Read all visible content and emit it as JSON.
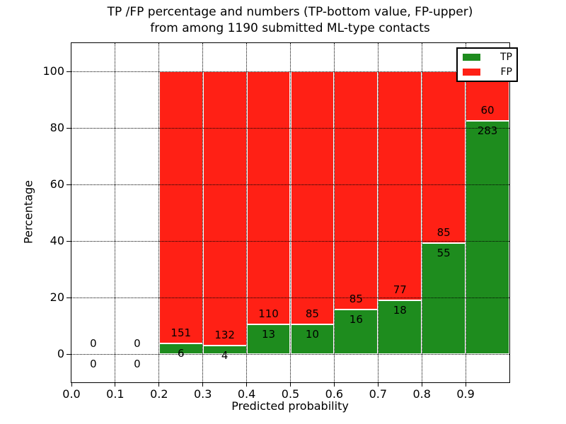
{
  "title": {
    "line1": "TP /FP percentage and numbers (TP-bottom value, FP-upper)",
    "line2": "from among 1190 submitted ML-type contacts"
  },
  "chart_data": {
    "type": "bar",
    "stacked": true,
    "title": "TP /FP percentage and numbers (TP-bottom value, FP-upper) from among 1190 submitted ML-type contacts",
    "xlabel": "Predicted probability",
    "ylabel": "Percentage",
    "xlim": [
      0.0,
      1.0
    ],
    "ylim": [
      -10,
      110
    ],
    "grid": true,
    "grid_style": "dotted",
    "x_ticks": [
      "0.0",
      "0.1",
      "0.2",
      "0.3",
      "0.4",
      "0.5",
      "0.6",
      "0.7",
      "0.8",
      "0.9"
    ],
    "y_ticks": [
      "0",
      "20",
      "40",
      "60",
      "80",
      "100"
    ],
    "total_contacts": 1190,
    "legend": {
      "position": "upper right",
      "entries": [
        {
          "label": "TP",
          "color": "#1e8c1e"
        },
        {
          "label": "FP",
          "color": "#ff2015"
        }
      ]
    },
    "bins": [
      {
        "x_start": 0.0,
        "x_end": 0.1,
        "tp": 0,
        "fp": 0,
        "tp_pct": 0,
        "fp_pct": 0
      },
      {
        "x_start": 0.1,
        "x_end": 0.2,
        "tp": 0,
        "fp": 0,
        "tp_pct": 0,
        "fp_pct": 0
      },
      {
        "x_start": 0.2,
        "x_end": 0.3,
        "tp": 6,
        "fp": 151,
        "tp_pct": 3.82,
        "fp_pct": 96.18
      },
      {
        "x_start": 0.3,
        "x_end": 0.4,
        "tp": 4,
        "fp": 132,
        "tp_pct": 2.94,
        "fp_pct": 97.06
      },
      {
        "x_start": 0.4,
        "x_end": 0.5,
        "tp": 13,
        "fp": 110,
        "tp_pct": 10.57,
        "fp_pct": 89.43
      },
      {
        "x_start": 0.5,
        "x_end": 0.6,
        "tp": 10,
        "fp": 85,
        "tp_pct": 10.53,
        "fp_pct": 89.47
      },
      {
        "x_start": 0.6,
        "x_end": 0.7,
        "tp": 16,
        "fp": 85,
        "tp_pct": 15.84,
        "fp_pct": 84.16
      },
      {
        "x_start": 0.7,
        "x_end": 0.8,
        "tp": 18,
        "fp": 77,
        "tp_pct": 18.95,
        "fp_pct": 81.05
      },
      {
        "x_start": 0.8,
        "x_end": 0.9,
        "tp": 55,
        "fp": 85,
        "tp_pct": 39.29,
        "fp_pct": 60.71
      },
      {
        "x_start": 0.9,
        "x_end": 1.0,
        "tp": 283,
        "fp": 60,
        "tp_pct": 82.51,
        "fp_pct": 17.49
      }
    ]
  },
  "colors": {
    "tp": "#1e8c1e",
    "fp": "#ff2015",
    "background": "#ffffff",
    "text": "#000000",
    "grid": "#000000"
  }
}
